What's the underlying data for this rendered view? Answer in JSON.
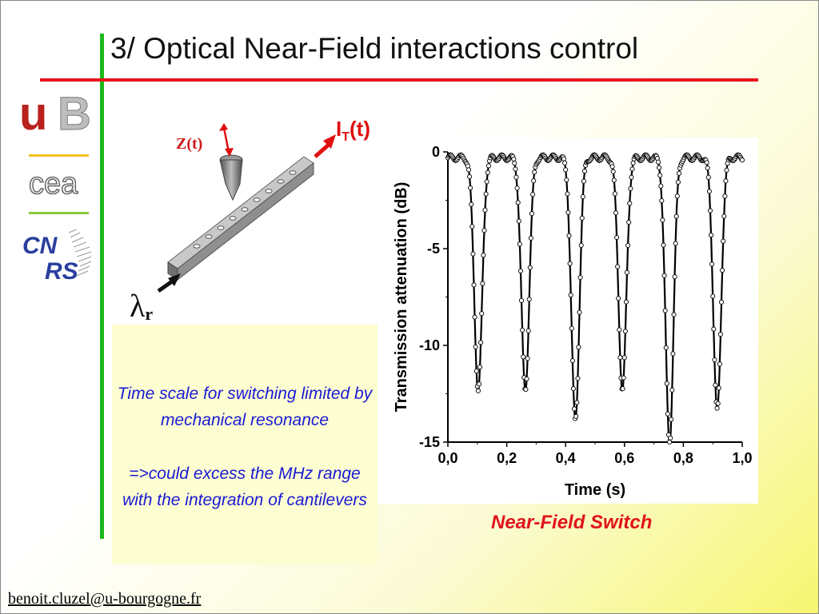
{
  "slide": {
    "title": "3/ Optical Near-Field interactions control",
    "email": "benoit.cluzel@u-bourgogne.fr",
    "caption": "Near-Field Switch",
    "text_1": "Time scale for switching limited by mechanical resonance",
    "text_2": "=>could excess the MHz range with the integration of cantilevers"
  },
  "logos": {
    "ub": {
      "letters_red": "u",
      "letters_grey": "B"
    },
    "cea": {
      "text": "cea"
    },
    "cnrs": {
      "text_top": "CN",
      "text_bottom": "RS"
    }
  },
  "illustration": {
    "z_label": "Z(t)",
    "it_label_main": "I",
    "it_label_sub": "T",
    "it_label_tail": "(t)",
    "lambda_symbol": "λ",
    "lambda_sub": "r"
  },
  "colors": {
    "title_rule": "#e8141c",
    "side_bar": "#1bb81b",
    "caption": "#e0141c",
    "body_text": "#1a1ad4"
  },
  "chart_data": {
    "type": "scatter",
    "xlabel": "Time (s)",
    "ylabel": "Transmission attenuation (dB)",
    "xlim": [
      0.0,
      1.0
    ],
    "ylim": [
      -15,
      0
    ],
    "xticks": [
      "0,0",
      "0,2",
      "0,4",
      "0,6",
      "0,8",
      "1,0"
    ],
    "yticks": [
      "0",
      "-5",
      "-10",
      "-15"
    ],
    "dips": [
      {
        "t": 0.103,
        "depth": -12.3
      },
      {
        "t": 0.263,
        "depth": -12.3
      },
      {
        "t": 0.433,
        "depth": -13.9
      },
      {
        "t": 0.593,
        "depth": -12.3
      },
      {
        "t": 0.753,
        "depth": -15.0
      },
      {
        "t": 0.915,
        "depth": -13.4
      }
    ],
    "baseline_db": -0.3
  }
}
